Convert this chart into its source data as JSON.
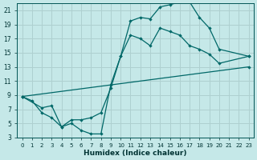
{
  "xlabel": "Humidex (Indice chaleur)",
  "bg_color": "#c5e8e8",
  "grid_color": "#aed0d0",
  "line_color": "#006868",
  "xlim": [
    -0.5,
    23.5
  ],
  "ylim": [
    3,
    22
  ],
  "xticks": [
    0,
    1,
    2,
    3,
    4,
    5,
    6,
    7,
    8,
    9,
    10,
    11,
    12,
    13,
    14,
    15,
    16,
    17,
    18,
    19,
    20,
    21,
    22,
    23
  ],
  "yticks": [
    3,
    5,
    7,
    9,
    11,
    13,
    15,
    17,
    19,
    21
  ],
  "line1_x": [
    0,
    1,
    2,
    3,
    4,
    5,
    6,
    7,
    8,
    9,
    10,
    11,
    12,
    13,
    14,
    15,
    16,
    17,
    18,
    19,
    20,
    23
  ],
  "line1_y": [
    8.8,
    8.2,
    6.5,
    5.8,
    4.5,
    5.0,
    4.0,
    3.5,
    3.5,
    10.5,
    14.5,
    19.5,
    20.0,
    19.8,
    21.5,
    21.8,
    22.2,
    22.2,
    20.0,
    18.5,
    15.5,
    14.5
  ],
  "line2_x": [
    0,
    2,
    3,
    4,
    5,
    6,
    7,
    8,
    9,
    10,
    11,
    12,
    13,
    14,
    15,
    16,
    17,
    18,
    19,
    20,
    23
  ],
  "line2_y": [
    8.8,
    7.2,
    7.5,
    4.5,
    5.5,
    5.5,
    5.8,
    6.5,
    10.0,
    14.5,
    17.5,
    17.0,
    16.0,
    18.5,
    18.0,
    17.5,
    16.0,
    15.5,
    14.8,
    13.5,
    14.5
  ],
  "line3_x": [
    0,
    23
  ],
  "line3_y": [
    8.8,
    13.0
  ]
}
